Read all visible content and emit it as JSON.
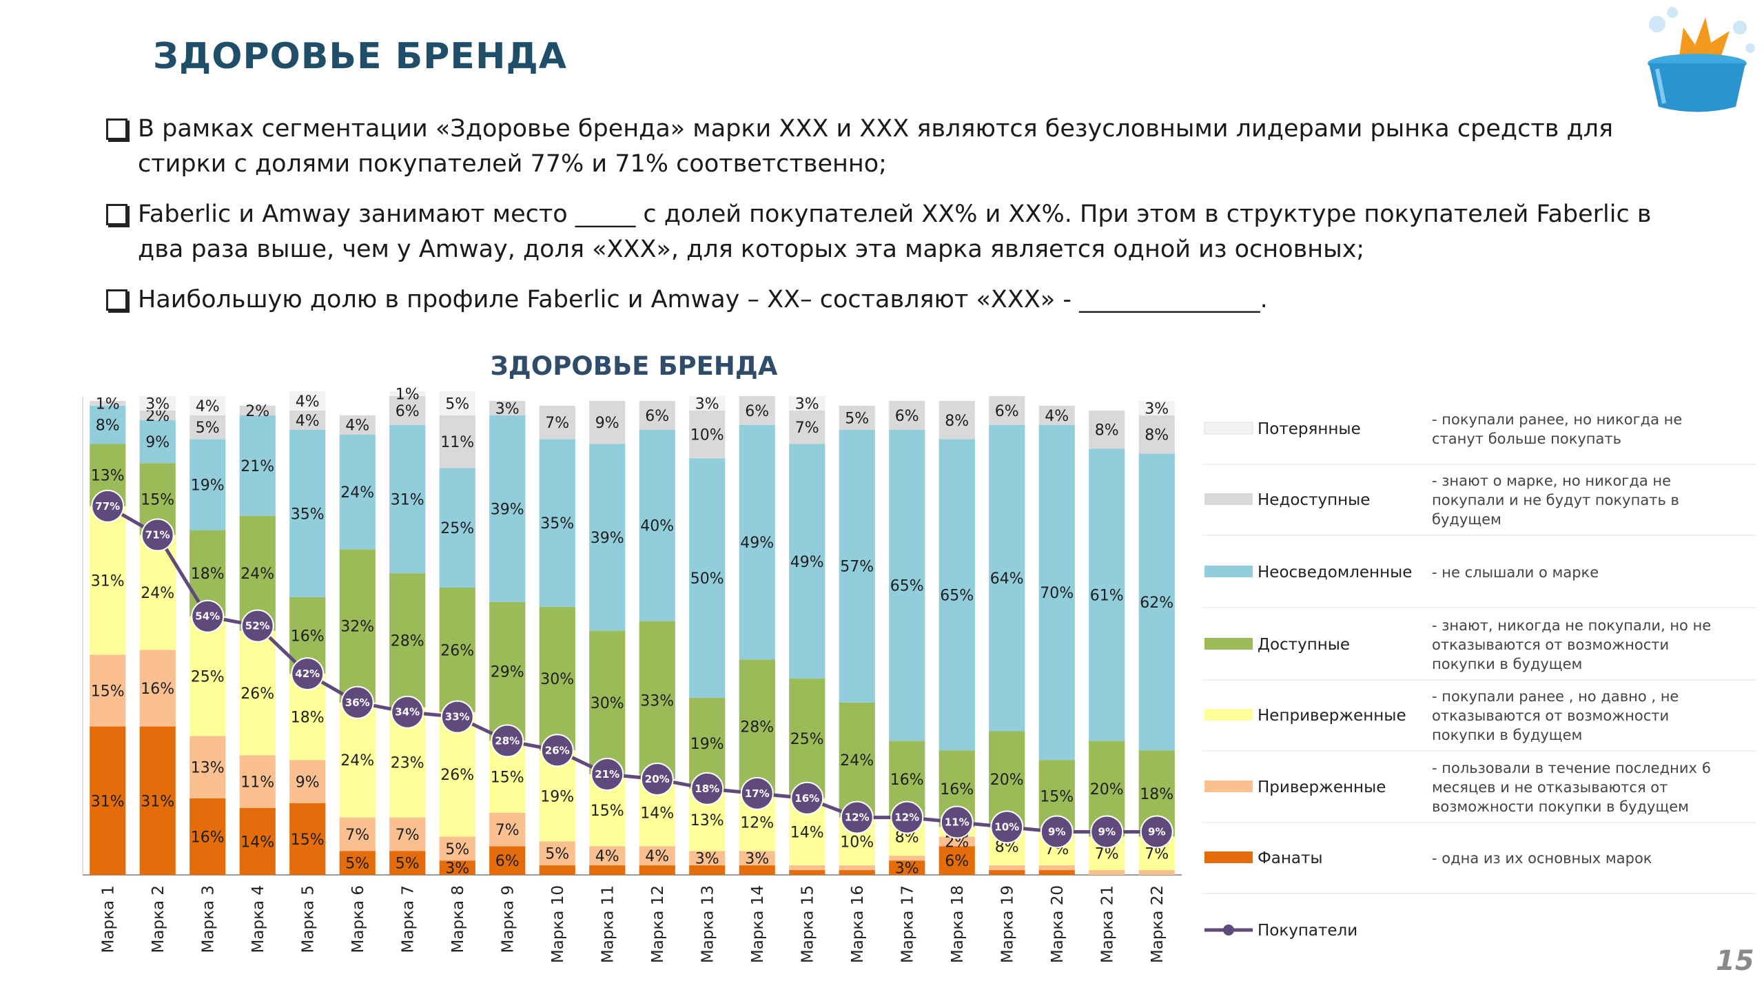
{
  "slide": {
    "title": "ЗДОРОВЬЕ БРЕНДА",
    "page_number": "15",
    "bullets": [
      "В рамках сегментации «Здоровье бренда» марки XXX и XXX являются безусловными лидерами рынка средств для стирки с долями покупателей 77% и 71% соответственно;",
      "Faberlic и Amway занимают место _____ с долей покупателей XX% и XX%.  При этом в структуре покупателей Faberlic в два раза выше, чем у Amway, доля «XXX», для которых эта марка является одной из основных;",
      "Наибольшую долю в профиле Faberlic и Amway – XX– составляют «XXX» - _______________."
    ],
    "logo_icon": "laundry-basin-splash-icon"
  },
  "chart_data": {
    "type": "bar",
    "stacked": true,
    "title": "ЗДОРОВЬЕ БРЕНДА",
    "ylim": [
      0,
      100
    ],
    "categories": [
      "Марка 1",
      "Марка 2",
      "Марка 3",
      "Марка 4",
      "Марка 5",
      "Марка 6",
      "Марка 7",
      "Марка 8",
      "Марка 9",
      "Марка 10",
      "Марка 11",
      "Марка 12",
      "Марка 13",
      "Марка 14",
      "Марка 15",
      "Марка 16",
      "Марка 17",
      "Марка 18",
      "Марка 19",
      "Марка 20",
      "Марка 21",
      "Марка 22"
    ],
    "series": [
      {
        "name": "Фанаты",
        "color": "#e46c0a",
        "values": [
          31,
          31,
          16,
          14,
          15,
          5,
          5,
          3,
          6,
          2,
          2,
          2,
          2,
          2,
          1,
          1,
          3,
          6,
          1,
          1,
          0,
          0
        ],
        "labels": [
          "31%",
          "31%",
          "16%",
          "14%",
          "15%",
          "5%",
          "5%",
          "3%",
          "6%",
          "",
          "",
          "",
          "",
          "",
          "",
          "",
          "3%",
          "6%",
          "",
          "",
          "",
          ""
        ]
      },
      {
        "name": "Приверженные",
        "color": "#fac090",
        "values": [
          15,
          16,
          13,
          11,
          9,
          7,
          7,
          5,
          7,
          5,
          4,
          4,
          3,
          3,
          1,
          1,
          1,
          2,
          1,
          1,
          1,
          1
        ],
        "labels": [
          "15%",
          "16%",
          "13%",
          "11%",
          "9%",
          "7%",
          "7%",
          "5%",
          "7%",
          "5%",
          "4%",
          "4%",
          "3%",
          "3%",
          "",
          "",
          "",
          "2%",
          "",
          "",
          "",
          ""
        ]
      },
      {
        "name": "Неприверженные",
        "color": "#ffff99",
        "values": [
          31,
          24,
          25,
          26,
          18,
          24,
          23,
          26,
          15,
          19,
          15,
          14,
          13,
          12,
          14,
          10,
          8,
          2,
          8,
          7,
          7,
          7
        ],
        "labels": [
          "31%",
          "24%",
          "25%",
          "26%",
          "18%",
          "24%",
          "23%",
          "26%",
          "15%",
          "19%",
          "15%",
          "14%",
          "13%",
          "12%",
          "14%",
          "10%",
          "8%",
          "2%",
          "8%",
          "7%",
          "7%",
          "7%"
        ]
      },
      {
        "name": "Доступные",
        "color": "#9bbb59",
        "values": [
          13,
          15,
          18,
          24,
          16,
          32,
          28,
          26,
          29,
          30,
          30,
          33,
          19,
          28,
          25,
          24,
          16,
          16,
          20,
          15,
          20,
          18
        ],
        "labels": [
          "13%",
          "15%",
          "18%",
          "24%",
          "16%",
          "32%",
          "28%",
          "26%",
          "29%",
          "30%",
          "30%",
          "33%",
          "19%",
          "28%",
          "25%",
          "24%",
          "16%",
          "16%",
          "20%",
          "15%",
          "20%",
          "18%"
        ]
      },
      {
        "name": "Неосведомленные",
        "color": "#92cddc",
        "values": [
          8,
          9,
          19,
          21,
          35,
          24,
          31,
          25,
          39,
          35,
          39,
          40,
          50,
          49,
          49,
          57,
          65,
          65,
          64,
          70,
          61,
          62
        ],
        "labels": [
          "8%",
          "9%",
          "19%",
          "21%",
          "35%",
          "24%",
          "31%",
          "25%",
          "39%",
          "35%",
          "39%",
          "40%",
          "50%",
          "49%",
          "49%",
          "57%",
          "65%",
          "65%",
          "64%",
          "70%",
          "61%",
          "62%"
        ]
      },
      {
        "name": "Недоступные",
        "color": "#d9d9d9",
        "values": [
          1,
          2,
          5,
          2,
          4,
          4,
          6,
          11,
          3,
          7,
          9,
          6,
          10,
          6,
          7,
          5,
          6,
          8,
          6,
          4,
          8,
          8
        ],
        "labels": [
          "1%",
          "2%",
          "5%",
          "2%",
          "4%",
          "4%",
          "6%",
          "11%",
          "3%",
          "7%",
          "9%",
          "6%",
          "10%",
          "6%",
          "7%",
          "5%",
          "6%",
          "8%",
          "6%",
          "4%",
          "8%",
          "8%"
        ]
      },
      {
        "name": "Потерянные",
        "color": "#f2f2f2",
        "values": [
          0,
          3,
          4,
          0,
          4,
          0,
          1,
          5,
          0,
          0,
          0,
          0,
          3,
          0,
          3,
          0,
          0,
          0,
          0,
          0,
          0,
          3
        ],
        "labels": [
          "",
          "3%",
          "4%",
          "",
          "4%",
          "",
          "1%",
          "5%",
          "",
          "",
          "",
          "",
          "3%",
          "",
          "3%",
          "",
          "",
          "",
          "",
          "",
          "",
          "3%"
        ]
      }
    ],
    "line": {
      "name": "Покупатели",
      "color": "#604a7b",
      "values": [
        77,
        71,
        54,
        52,
        42,
        36,
        34,
        33,
        28,
        26,
        21,
        20,
        18,
        17,
        16,
        12,
        12,
        11,
        10,
        9,
        9,
        9
      ],
      "labels": [
        "77%",
        "71%",
        "54%",
        "52%",
        "42%",
        "36%",
        "34%",
        "33%",
        "28%",
        "26%",
        "21%",
        "20%",
        "18%",
        "17%",
        "16%",
        "12%",
        "12%",
        "11%",
        "10%",
        "9%",
        "9%",
        "9%"
      ]
    },
    "legend_placement": "right",
    "legend": [
      {
        "key": "Потерянные",
        "color": "#f2f2f2",
        "type": "box",
        "desc": [
          "- покупали ранее,  но никогда не",
          "станут больше покупать"
        ]
      },
      {
        "key": "Недоступные",
        "color": "#d9d9d9",
        "type": "box",
        "desc": [
          "- знают о марке, но никогда не",
          "покупали и не будут покупать в",
          "будущем"
        ]
      },
      {
        "key": "Неосведомленные",
        "color": "#92cddc",
        "type": "box",
        "desc": [
          "- не слышали о марке"
        ]
      },
      {
        "key": "Доступные",
        "color": "#9bbb59",
        "type": "box",
        "desc": [
          "- знают, никогда не покупали, но не",
          "отказываются от возможности",
          "покупки в будущем"
        ]
      },
      {
        "key": "Неприверженные",
        "color": "#ffff99",
        "type": "box",
        "desc": [
          "- покупали ранее , но давно , не",
          "отказываются от возможности",
          "покупки в будущем"
        ]
      },
      {
        "key": "Приверженные",
        "color": "#fac090",
        "type": "box",
        "desc": [
          "- пользовали в течение последних 6",
          "месяцев  и не отказываются от",
          "возможности покупки в будущем"
        ]
      },
      {
        "key": "Фанаты",
        "color": "#e46c0a",
        "type": "box",
        "desc": [
          "- одна из их основных марок"
        ]
      },
      {
        "key": "Покупатели",
        "color": "#604a7b",
        "type": "line",
        "desc": []
      }
    ]
  }
}
